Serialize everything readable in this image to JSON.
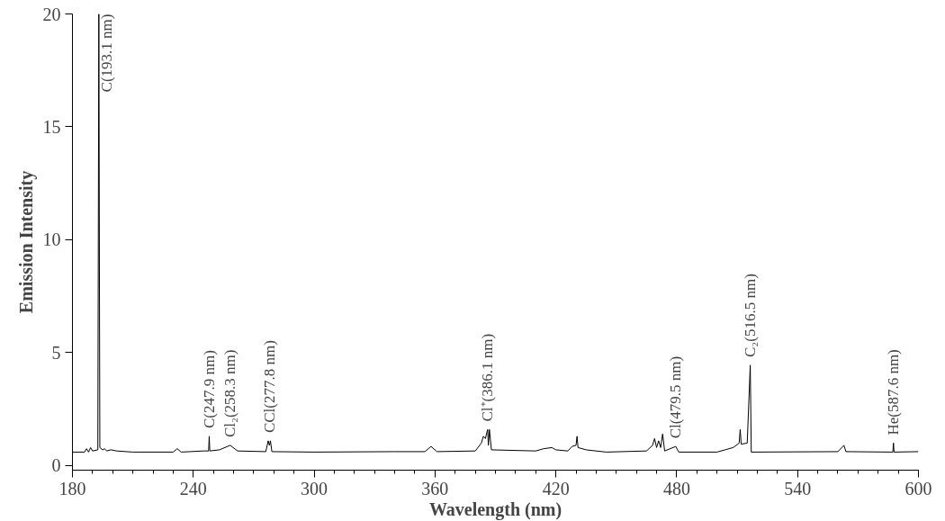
{
  "chart_data": {
    "type": "line",
    "xlabel": "Wavelength (nm)",
    "ylabel": "Emission Intensity",
    "color": "#000000",
    "x": [
      180,
      186,
      187,
      188,
      189,
      190,
      192.6,
      193.1,
      193.6,
      195,
      196,
      197,
      199,
      202,
      210,
      230,
      232,
      234,
      245,
      247.6,
      247.9,
      248.2,
      253,
      258.3,
      262,
      276,
      277.2,
      277.8,
      278.3,
      279,
      300,
      340,
      355,
      358,
      361,
      380,
      383,
      384,
      385,
      386.1,
      386.5,
      387,
      388,
      410,
      414,
      418,
      420,
      426,
      428,
      430,
      430.5,
      431,
      435,
      445,
      465,
      468,
      469,
      470,
      471,
      472,
      473,
      474,
      479.5,
      481,
      500,
      508,
      511,
      511.5,
      512,
      515,
      516.5,
      517,
      560,
      563,
      564,
      587.3,
      587.6,
      587.9,
      600
    ],
    "values": [
      0.6,
      0.6,
      0.75,
      0.6,
      0.8,
      0.65,
      0.7,
      20,
      0.8,
      0.7,
      0.75,
      0.65,
      0.7,
      0.65,
      0.6,
      0.6,
      0.75,
      0.6,
      0.65,
      0.65,
      1.3,
      0.65,
      0.7,
      0.9,
      0.65,
      0.62,
      1.1,
      0.9,
      1.1,
      0.62,
      0.6,
      0.62,
      0.62,
      0.85,
      0.62,
      0.65,
      1.0,
      1.3,
      1.2,
      1.6,
      0.9,
      1.6,
      0.7,
      0.65,
      0.75,
      0.8,
      0.7,
      0.65,
      0.85,
      0.9,
      1.3,
      0.8,
      0.7,
      0.6,
      0.65,
      0.9,
      1.2,
      0.8,
      1.1,
      0.8,
      1.4,
      0.65,
      0.85,
      0.6,
      0.6,
      0.8,
      1.0,
      1.6,
      0.95,
      1.0,
      4.45,
      0.6,
      0.62,
      0.9,
      0.62,
      0.6,
      1.0,
      0.6,
      0.62
    ],
    "xlim": [
      180,
      600
    ],
    "ylim": [
      -0.2,
      20
    ],
    "xticks": [
      180,
      240,
      300,
      360,
      420,
      480,
      540,
      600
    ],
    "yticks": [
      0,
      5,
      10,
      15,
      20
    ],
    "annotations": [
      {
        "text": "C(193.1 nm)",
        "x": 193.1,
        "y": 20
      },
      {
        "text": "C(247.9 nm)",
        "x": 247.9,
        "y": 1.3
      },
      {
        "text": "Cl₂(258.3 nm)",
        "x": 258.3,
        "y": 0.9
      },
      {
        "text": "CCl(277.8 nm)",
        "x": 277.8,
        "y": 1.1
      },
      {
        "text": "Cl⁺(386.1 nm)",
        "x": 386.1,
        "y": 1.6
      },
      {
        "text": "Cl(479.5 nm)",
        "x": 479.5,
        "y": 0.85
      },
      {
        "text": "C₂(516.5 nm)",
        "x": 516.5,
        "y": 4.45
      },
      {
        "text": "He(587.6 nm)",
        "x": 587.6,
        "y": 1.0
      }
    ]
  }
}
